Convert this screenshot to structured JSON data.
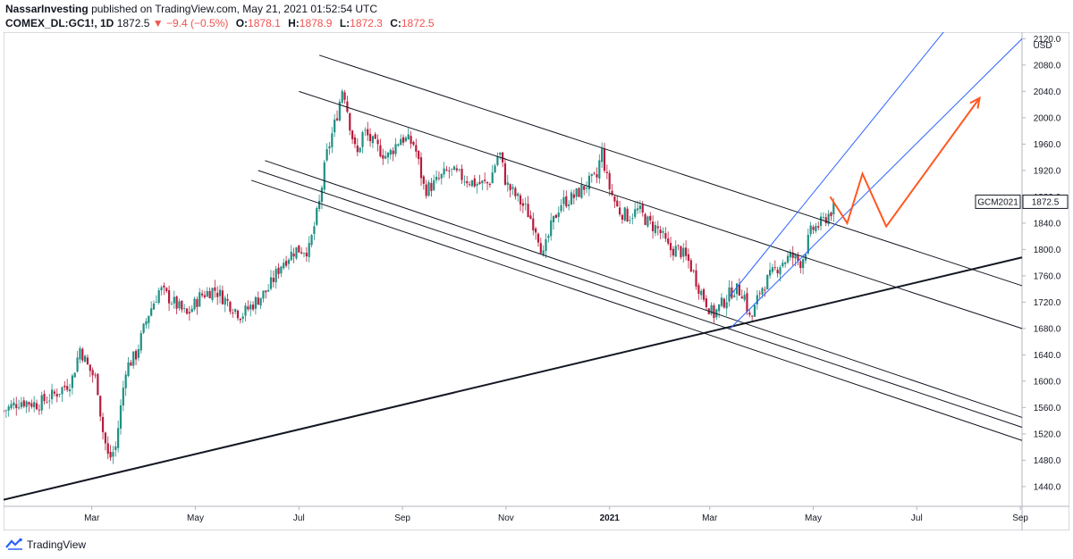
{
  "header": {
    "author": "NassarInvesting",
    "published": "published on TradingView.com, May 21, 2021 01:52:54 UTC",
    "symbol": "COMEX_DL:GC1!, 1D",
    "price": "1872.5",
    "change": "−9.4 (−0.5%)",
    "change_arrow": "▼",
    "o_label": "O:",
    "o_value": "1878.1",
    "h_label": "H:",
    "h_value": "1878.9",
    "l_label": "L:",
    "l_value": "1872.3",
    "c_label": "C:",
    "c_value": "1872.5"
  },
  "price_tag": {
    "symbol": "GCM2021",
    "price": "1872.5"
  },
  "currency": "USD",
  "footer": {
    "brand": "TradingView"
  },
  "colors": {
    "up": "#26a69a",
    "down": "#ef5350",
    "candle_up_body": "#1f8f83",
    "candle_down_body": "#b71c3c",
    "channel": "#2962ff",
    "projection": "#ff5722",
    "trendlines": "#131722"
  },
  "chart_data": {
    "type": "candlestick",
    "title": "COMEX_DL:GC1!, 1D",
    "ylabel": "USD",
    "ylim": [
      1410,
      2130
    ],
    "y_ticks": [
      "2120.0",
      "2080.0",
      "2040.0",
      "2000.0",
      "1960.0",
      "1920.0",
      "1880.0",
      "1840.0",
      "1800.0",
      "1760.0",
      "1720.0",
      "1680.0",
      "1640.0",
      "1600.0",
      "1560.0",
      "1520.0",
      "1480.0",
      "1440.0"
    ],
    "x_ticks": [
      "Mar",
      "May",
      "Jul",
      "Sep",
      "Nov",
      "2021",
      "Mar",
      "May",
      "Jul",
      "Sep"
    ],
    "x_tick_days": [
      52,
      113,
      174,
      235,
      296,
      357,
      416,
      477,
      538,
      599
    ],
    "xlim": [
      0,
      600
    ],
    "last_price": 1872.5,
    "close_path": [
      [
        0,
        1555
      ],
      [
        10,
        1570
      ],
      [
        20,
        1565
      ],
      [
        30,
        1580
      ],
      [
        40,
        1600
      ],
      [
        45,
        1650
      ],
      [
        50,
        1620
      ],
      [
        55,
        1600
      ],
      [
        58,
        1530
      ],
      [
        62,
        1480
      ],
      [
        66,
        1500
      ],
      [
        72,
        1620
      ],
      [
        78,
        1640
      ],
      [
        85,
        1700
      ],
      [
        92,
        1740
      ],
      [
        100,
        1720
      ],
      [
        108,
        1700
      ],
      [
        116,
        1730
      ],
      [
        124,
        1740
      ],
      [
        132,
        1720
      ],
      [
        140,
        1700
      ],
      [
        148,
        1720
      ],
      [
        156,
        1740
      ],
      [
        164,
        1780
      ],
      [
        172,
        1800
      ],
      [
        180,
        1800
      ],
      [
        186,
        1870
      ],
      [
        190,
        1940
      ],
      [
        196,
        2000
      ],
      [
        200,
        2050
      ],
      [
        204,
        1990
      ],
      [
        208,
        1940
      ],
      [
        212,
        1980
      ],
      [
        218,
        1960
      ],
      [
        226,
        1940
      ],
      [
        234,
        1970
      ],
      [
        242,
        1960
      ],
      [
        248,
        1890
      ],
      [
        254,
        1900
      ],
      [
        262,
        1920
      ],
      [
        270,
        1910
      ],
      [
        278,
        1900
      ],
      [
        286,
        1900
      ],
      [
        292,
        1950
      ],
      [
        296,
        1900
      ],
      [
        302,
        1880
      ],
      [
        308,
        1860
      ],
      [
        314,
        1830
      ],
      [
        318,
        1790
      ],
      [
        322,
        1830
      ],
      [
        328,
        1870
      ],
      [
        336,
        1880
      ],
      [
        344,
        1900
      ],
      [
        350,
        1910
      ],
      [
        352,
        1955
      ],
      [
        356,
        1900
      ],
      [
        362,
        1860
      ],
      [
        368,
        1850
      ],
      [
        374,
        1860
      ],
      [
        380,
        1840
      ],
      [
        386,
        1830
      ],
      [
        392,
        1800
      ],
      [
        398,
        1800
      ],
      [
        404,
        1780
      ],
      [
        410,
        1740
      ],
      [
        414,
        1720
      ],
      [
        418,
        1700
      ],
      [
        424,
        1720
      ],
      [
        430,
        1740
      ],
      [
        436,
        1735
      ],
      [
        440,
        1690
      ],
      [
        446,
        1740
      ],
      [
        452,
        1760
      ],
      [
        458,
        1780
      ],
      [
        464,
        1790
      ],
      [
        470,
        1780
      ],
      [
        476,
        1830
      ],
      [
        482,
        1840
      ],
      [
        488,
        1860
      ],
      [
        490,
        1872.5
      ]
    ],
    "annotations": {
      "support_trendline": [
        [
          0,
          1420
        ],
        [
          600,
          1788
        ]
      ],
      "descending_channel_upper": [
        [
          186,
          2095
        ],
        [
          600,
          1745
        ]
      ],
      "descending_channel_lower": [
        [
          174,
          2040
        ],
        [
          600,
          1680
        ]
      ],
      "descending_parallels": [
        [
          [
            154,
            1935
          ],
          [
            600,
            1545
          ]
        ],
        [
          [
            150,
            1920
          ],
          [
            600,
            1530
          ]
        ],
        [
          [
            146,
            1905
          ],
          [
            600,
            1510
          ]
        ]
      ],
      "ascending_channel_upper": [
        [
          428,
          1730
        ],
        [
          560,
          2150
        ]
      ],
      "ascending_channel_lower": [
        [
          428,
          1680
        ],
        [
          600,
          2120
        ]
      ],
      "projection_path": [
        [
          487,
          1880
        ],
        [
          497,
          1840
        ],
        [
          506,
          1915
        ],
        [
          520,
          1835
        ],
        [
          575,
          2030
        ]
      ]
    }
  }
}
